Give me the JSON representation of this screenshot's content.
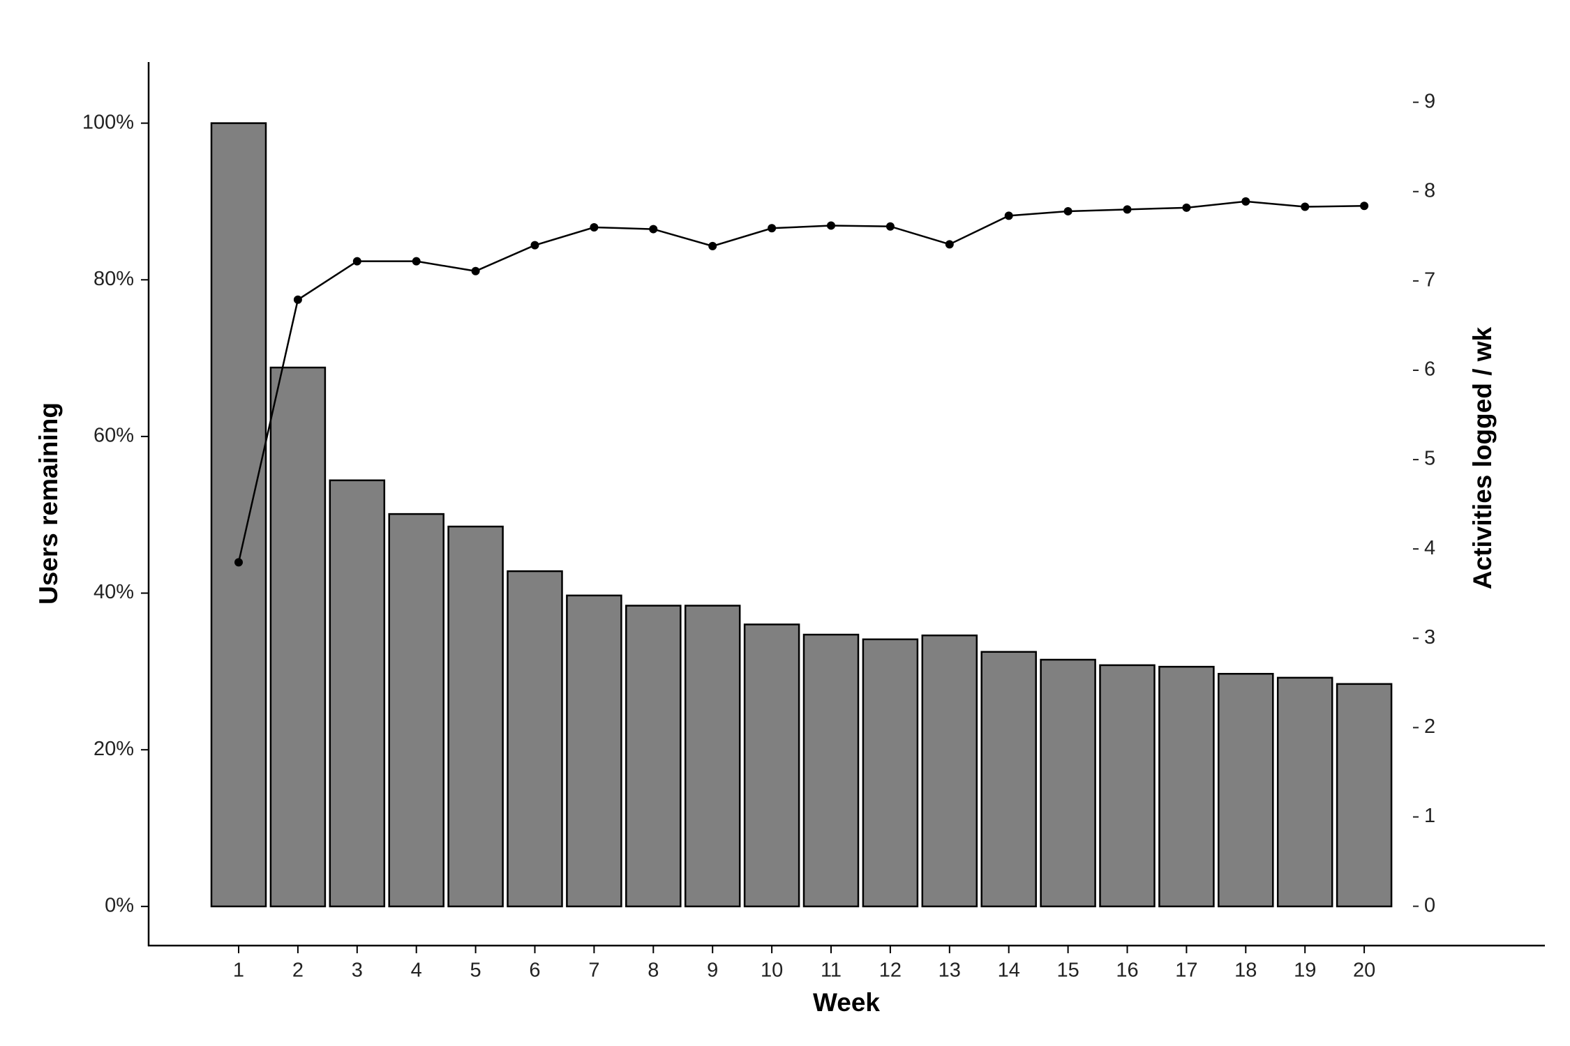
{
  "chart_data": {
    "type": "bar",
    "xlabel": "Week",
    "ylabel": "Users remaining",
    "y2label": "Activities logged / wk",
    "categories": [
      "1",
      "2",
      "3",
      "4",
      "5",
      "6",
      "7",
      "8",
      "9",
      "10",
      "11",
      "12",
      "13",
      "14",
      "15",
      "16",
      "17",
      "18",
      "19",
      "20"
    ],
    "series": [
      {
        "type": "bar",
        "color": "#808080",
        "values": [
          100,
          68.8,
          54.4,
          50.1,
          48.5,
          42.8,
          39.7,
          38.4,
          38.4,
          36.0,
          34.7,
          34.1,
          34.6,
          32.5,
          31.5,
          30.8,
          30.6,
          29.7,
          29.2,
          28.4
        ]
      },
      {
        "type": "line",
        "axis": "y2",
        "color": "#000000",
        "values": [
          3.85,
          6.79,
          7.22,
          7.22,
          7.11,
          7.4,
          7.6,
          7.58,
          7.39,
          7.59,
          7.62,
          7.61,
          7.41,
          7.73,
          7.78,
          7.8,
          7.82,
          7.89,
          7.83,
          7.84
        ]
      }
    ],
    "ylim": [
      -5,
      107.8
    ],
    "yticks": [
      {
        "value": 0,
        "label": "0%"
      },
      {
        "value": 20,
        "label": "20%"
      },
      {
        "value": 40,
        "label": "40%"
      },
      {
        "value": 60,
        "label": "60%"
      },
      {
        "value": 80,
        "label": "80%"
      },
      {
        "value": 100,
        "label": "100%"
      }
    ],
    "y2lim": [
      -0.44,
      9.45
    ],
    "y2ticks": [
      0,
      1,
      2,
      3,
      4,
      5,
      6,
      7,
      8,
      9
    ],
    "grid": false
  }
}
